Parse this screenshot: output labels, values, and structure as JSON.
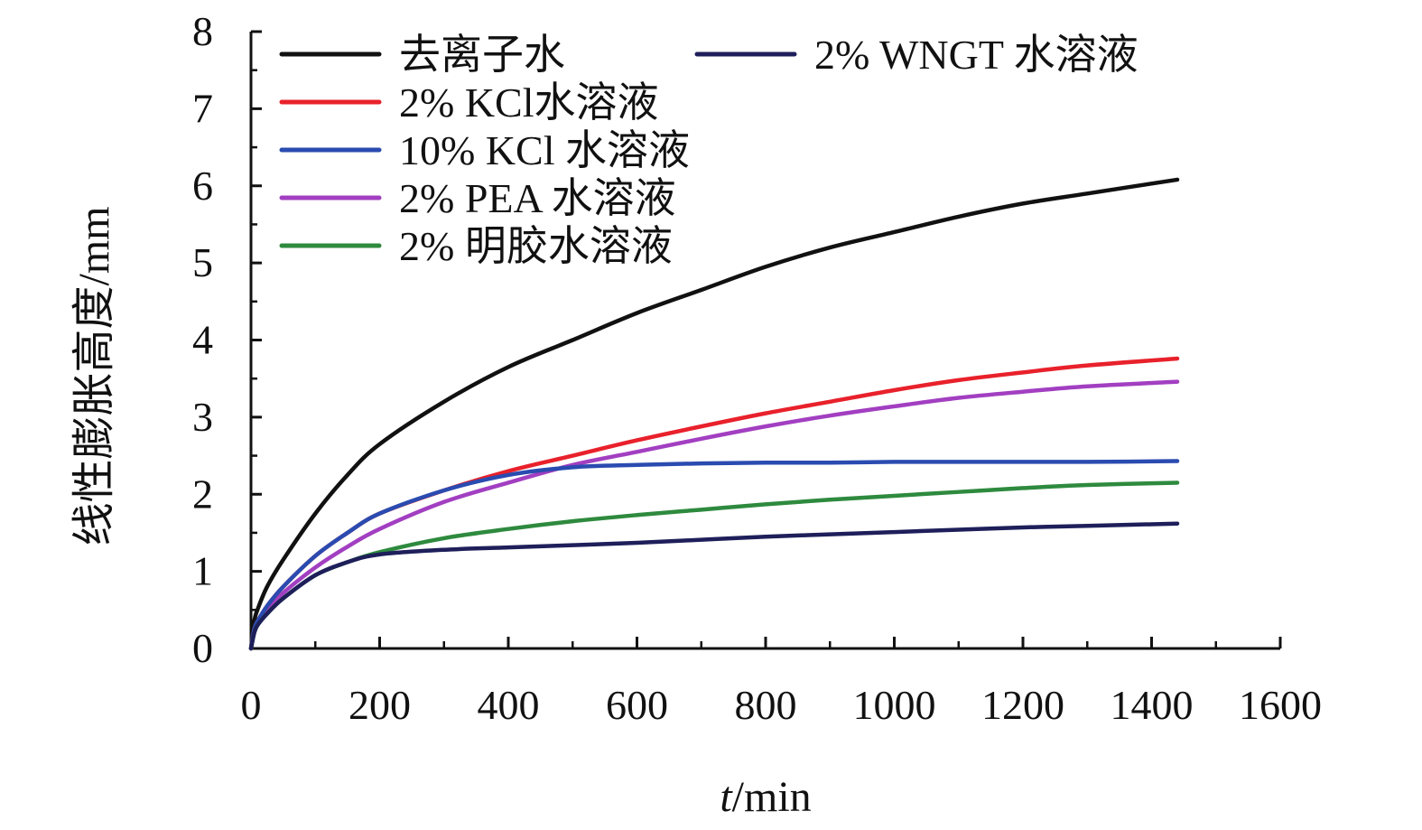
{
  "chart_data": {
    "type": "line",
    "title": "",
    "xlabel": {
      "italic": "t",
      "rest": "/min"
    },
    "ylabel": "线性膨胀高度/mm",
    "xlim": [
      0,
      1600
    ],
    "ylim": [
      0,
      8
    ],
    "xticks": [
      0,
      200,
      400,
      600,
      800,
      1000,
      1200,
      1400,
      1600
    ],
    "yticks": [
      0,
      1,
      2,
      3,
      4,
      5,
      6,
      7,
      8
    ],
    "grid": false,
    "legend_position": "top",
    "series": [
      {
        "name": "去离子水",
        "color": "#111111",
        "x": [
          0,
          5,
          10,
          25,
          50,
          100,
          150,
          200,
          300,
          400,
          500,
          600,
          700,
          800,
          900,
          1000,
          1100,
          1200,
          1300,
          1440
        ],
        "y": [
          0,
          0.35,
          0.5,
          0.8,
          1.15,
          1.75,
          2.25,
          2.65,
          3.2,
          3.65,
          4.0,
          4.35,
          4.65,
          4.95,
          5.2,
          5.4,
          5.6,
          5.77,
          5.9,
          6.08
        ]
      },
      {
        "name": "2% KCl水溶液",
        "color": "#e8212b",
        "x": [
          0,
          5,
          10,
          25,
          50,
          100,
          150,
          200,
          300,
          400,
          500,
          600,
          700,
          800,
          900,
          1000,
          1100,
          1200,
          1300,
          1440
        ],
        "y": [
          0,
          0.25,
          0.35,
          0.55,
          0.8,
          1.2,
          1.5,
          1.75,
          2.05,
          2.3,
          2.5,
          2.7,
          2.88,
          3.05,
          3.2,
          3.35,
          3.48,
          3.58,
          3.67,
          3.76
        ]
      },
      {
        "name": "10% KCl 水溶液",
        "color": "#2a4bb0",
        "x": [
          0,
          5,
          10,
          25,
          50,
          100,
          150,
          200,
          300,
          400,
          500,
          600,
          700,
          800,
          900,
          1000,
          1100,
          1200,
          1300,
          1440
        ],
        "y": [
          0,
          0.25,
          0.35,
          0.55,
          0.8,
          1.2,
          1.5,
          1.75,
          2.05,
          2.25,
          2.35,
          2.38,
          2.4,
          2.41,
          2.41,
          2.42,
          2.42,
          2.42,
          2.42,
          2.43
        ]
      },
      {
        "name": "2% PEA 水溶液",
        "color": "#a23fc1",
        "x": [
          0,
          5,
          10,
          25,
          50,
          100,
          150,
          200,
          300,
          400,
          500,
          600,
          700,
          800,
          900,
          1000,
          1100,
          1200,
          1300,
          1440
        ],
        "y": [
          0,
          0.22,
          0.32,
          0.5,
          0.72,
          1.05,
          1.32,
          1.55,
          1.9,
          2.15,
          2.38,
          2.55,
          2.72,
          2.88,
          3.02,
          3.14,
          3.25,
          3.33,
          3.4,
          3.46
        ]
      },
      {
        "name": "2% 明胶水溶液",
        "color": "#2e8a3e",
        "x": [
          0,
          5,
          10,
          25,
          50,
          100,
          150,
          200,
          300,
          400,
          500,
          600,
          700,
          800,
          900,
          1000,
          1100,
          1200,
          1300,
          1440
        ],
        "y": [
          0,
          0.2,
          0.3,
          0.45,
          0.65,
          0.95,
          1.12,
          1.25,
          1.43,
          1.55,
          1.65,
          1.73,
          1.8,
          1.87,
          1.93,
          1.98,
          2.03,
          2.08,
          2.12,
          2.15
        ]
      },
      {
        "name": "2% WNGT 水溶液",
        "color": "#1e1f5a",
        "x": [
          0,
          5,
          10,
          25,
          50,
          100,
          150,
          200,
          300,
          400,
          500,
          600,
          700,
          800,
          900,
          1000,
          1100,
          1200,
          1300,
          1440
        ],
        "y": [
          0,
          0.2,
          0.3,
          0.45,
          0.65,
          0.95,
          1.12,
          1.22,
          1.28,
          1.31,
          1.34,
          1.37,
          1.41,
          1.45,
          1.48,
          1.51,
          1.54,
          1.57,
          1.59,
          1.62
        ]
      }
    ]
  }
}
